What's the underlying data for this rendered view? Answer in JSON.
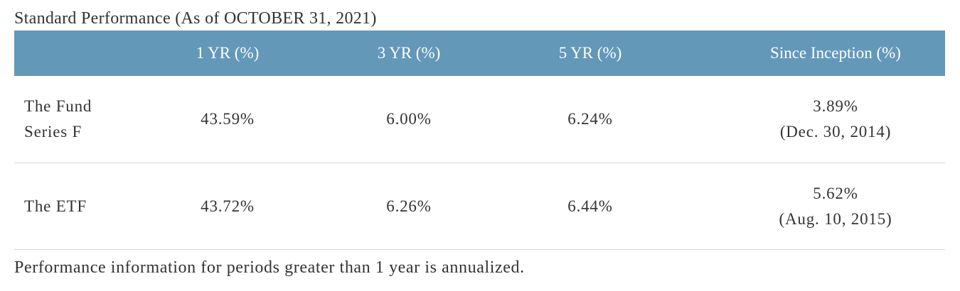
{
  "title": "Standard Performance (As of OCTOBER 31, 2021)",
  "table": {
    "headers": [
      "",
      "1 YR (%)",
      "3 YR (%)",
      "5 YR (%)",
      "Since Inception (%)"
    ],
    "rows": [
      {
        "name": "The Fund Series F",
        "one_yr": "43.59%",
        "three_yr": "6.00%",
        "five_yr": "6.24%",
        "since_inception": "3.89%",
        "inception_date": "(Dec. 30, 2014)"
      },
      {
        "name": "The ETF",
        "one_yr": "43.72%",
        "three_yr": "6.26%",
        "five_yr": "6.44%",
        "since_inception": "5.62%",
        "inception_date": "(Aug. 10, 2015)"
      }
    ]
  },
  "footnote": "Performance information for periods greater than 1 year is annualized.",
  "colors": {
    "header_background": "#6398b9",
    "header_text": "#ffffff",
    "body_text": "#333333",
    "row_divider": "#d8d8d8"
  }
}
